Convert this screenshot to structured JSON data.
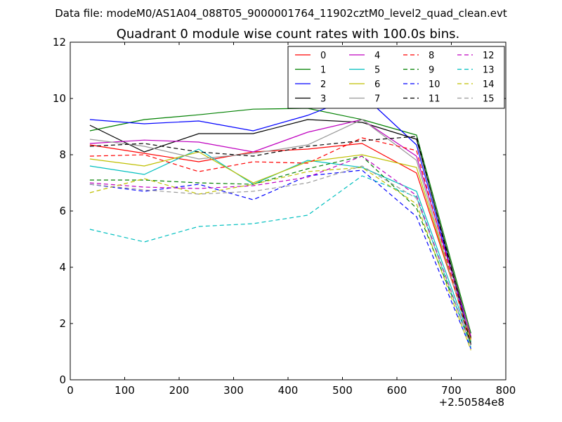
{
  "chart_data": {
    "type": "line",
    "suptitle": "Data file: modeM0/AS1A04_088T05_9000001764_11902cztM0_level2_quad_clean.evt",
    "title": "Quadrant 0 module wise count rates with 100.0s bins.",
    "xlabel": "",
    "ylabel": "",
    "x_offset_label": "+2.50584e8",
    "xlim": [
      0,
      800
    ],
    "ylim": [
      0,
      12
    ],
    "xticks": [
      0,
      100,
      200,
      300,
      400,
      500,
      600,
      700,
      800
    ],
    "yticks": [
      0,
      2,
      4,
      6,
      8,
      10,
      12
    ],
    "legend_position": "top-right",
    "x": [
      36,
      136,
      236,
      336,
      436,
      536,
      636,
      736
    ],
    "series": [
      {
        "name": "0",
        "color": "#ff0000",
        "dash": "solid",
        "values": [
          8.35,
          8.05,
          7.75,
          8.1,
          8.2,
          8.4,
          7.35,
          1.45
        ]
      },
      {
        "name": "1",
        "color": "#008000",
        "dash": "solid",
        "values": [
          8.85,
          9.25,
          9.42,
          9.62,
          9.65,
          9.25,
          8.7,
          1.65
        ]
      },
      {
        "name": "2",
        "color": "#0000ff",
        "dash": "solid",
        "values": [
          9.25,
          9.1,
          9.2,
          8.85,
          9.4,
          10.15,
          8.35,
          1.35
        ]
      },
      {
        "name": "3",
        "color": "#000000",
        "dash": "solid",
        "values": [
          9.05,
          8.1,
          8.75,
          8.75,
          9.25,
          9.15,
          8.55,
          1.5
        ]
      },
      {
        "name": "4",
        "color": "#bf00bf",
        "dash": "solid",
        "values": [
          8.4,
          8.52,
          8.45,
          8.1,
          8.8,
          9.25,
          7.95,
          1.55
        ]
      },
      {
        "name": "5",
        "color": "#00bfbf",
        "dash": "solid",
        "values": [
          7.6,
          7.3,
          8.2,
          6.95,
          7.8,
          7.55,
          6.7,
          1.35
        ]
      },
      {
        "name": "6",
        "color": "#bfbf00",
        "dash": "solid",
        "values": [
          7.85,
          7.6,
          8.1,
          7.0,
          7.75,
          8.0,
          7.55,
          1.4
        ]
      },
      {
        "name": "7",
        "color": "#999999",
        "dash": "solid",
        "values": [
          8.55,
          8.3,
          7.85,
          8.05,
          8.35,
          9.25,
          7.8,
          1.3
        ]
      },
      {
        "name": "8",
        "color": "#ff0000",
        "dash": "dashed",
        "values": [
          7.95,
          8.0,
          7.4,
          7.75,
          7.7,
          8.6,
          8.15,
          1.2
        ]
      },
      {
        "name": "9",
        "color": "#008000",
        "dash": "dashed",
        "values": [
          7.1,
          7.1,
          7.0,
          6.95,
          7.5,
          7.95,
          6.1,
          1.3
        ]
      },
      {
        "name": "10",
        "color": "#0000ff",
        "dash": "dashed",
        "values": [
          6.95,
          6.7,
          6.95,
          6.4,
          7.25,
          7.45,
          5.8,
          1.1
        ]
      },
      {
        "name": "11",
        "color": "#000000",
        "dash": "dashed",
        "values": [
          8.3,
          8.4,
          8.1,
          7.95,
          8.3,
          8.5,
          8.65,
          1.25
        ]
      },
      {
        "name": "12",
        "color": "#bf00bf",
        "dash": "dashed",
        "values": [
          7.0,
          6.85,
          6.8,
          6.9,
          7.2,
          7.95,
          6.55,
          1.2
        ]
      },
      {
        "name": "13",
        "color": "#00bfbf",
        "dash": "dashed",
        "values": [
          5.35,
          4.9,
          5.45,
          5.55,
          5.85,
          7.25,
          6.5,
          1.15
        ]
      },
      {
        "name": "14",
        "color": "#bfbf00",
        "dash": "dashed",
        "values": [
          6.65,
          7.15,
          6.6,
          6.95,
          7.4,
          7.55,
          6.25,
          1.05
        ]
      },
      {
        "name": "15",
        "color": "#999999",
        "dash": "dashed",
        "values": [
          6.95,
          6.75,
          6.6,
          6.7,
          7.0,
          7.6,
          6.45,
          1.2
        ]
      }
    ]
  }
}
